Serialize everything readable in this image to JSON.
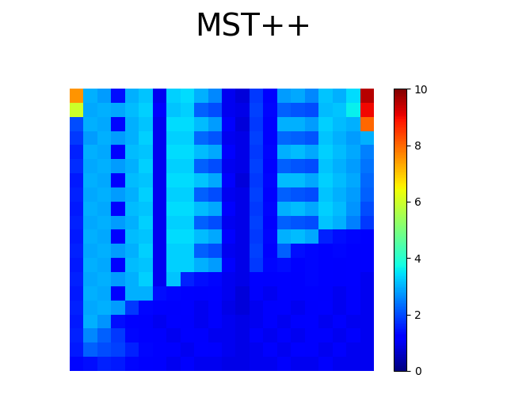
{
  "chart_data": {
    "type": "heatmap",
    "title": "MST++",
    "color": "jet",
    "tick_labels": false,
    "colorbar_range": [
      0,
      10
    ],
    "colorbar_ticks": [
      0,
      2,
      4,
      6,
      8,
      10
    ],
    "cells": [
      [
        7.5,
        3.0,
        2.8,
        1.4,
        3.0,
        3.2,
        1.0,
        3.3,
        3.4,
        3.0,
        2.6,
        1.0,
        0.8,
        1.8,
        1.2,
        2.8,
        2.9,
        2.6,
        3.2,
        3.0,
        3.4,
        9.5
      ],
      [
        6.0,
        2.9,
        3.0,
        2.9,
        3.1,
        3.3,
        1.1,
        3.2,
        3.3,
        2.2,
        2.0,
        1.0,
        0.9,
        1.9,
        1.3,
        2.2,
        2.1,
        2.0,
        3.1,
        3.2,
        3.6,
        9.0
      ],
      [
        2.0,
        3.0,
        2.9,
        1.3,
        3.0,
        3.2,
        1.0,
        3.4,
        3.4,
        3.1,
        2.8,
        1.1,
        0.8,
        1.8,
        1.2,
        3.0,
        3.0,
        2.8,
        3.3,
        3.1,
        3.0,
        8.0
      ],
      [
        1.8,
        2.8,
        3.0,
        2.8,
        3.0,
        3.3,
        1.0,
        3.3,
        3.3,
        2.3,
        2.1,
        1.0,
        0.9,
        1.9,
        1.2,
        2.3,
        2.2,
        2.1,
        3.2,
        3.0,
        2.8,
        3.0
      ],
      [
        1.6,
        3.0,
        2.9,
        1.2,
        3.1,
        3.2,
        1.0,
        3.4,
        3.4,
        3.1,
        2.9,
        1.1,
        0.9,
        1.8,
        1.3,
        3.0,
        3.1,
        2.9,
        3.3,
        3.1,
        2.9,
        2.5
      ],
      [
        1.7,
        2.9,
        3.0,
        2.8,
        3.0,
        3.3,
        1.0,
        3.3,
        3.3,
        2.2,
        2.0,
        1.0,
        0.9,
        1.9,
        1.2,
        2.2,
        2.1,
        2.0,
        3.2,
        3.0,
        2.8,
        2.4
      ],
      [
        1.5,
        3.0,
        2.9,
        1.2,
        3.1,
        3.2,
        1.0,
        3.4,
        3.4,
        3.2,
        2.9,
        1.1,
        0.8,
        1.8,
        1.3,
        3.1,
        3.1,
        2.9,
        3.3,
        3.1,
        2.9,
        2.3
      ],
      [
        1.6,
        2.9,
        3.0,
        2.8,
        3.0,
        3.3,
        1.0,
        3.3,
        3.3,
        2.2,
        2.0,
        1.0,
        0.9,
        1.9,
        1.2,
        2.2,
        2.1,
        2.0,
        3.2,
        3.0,
        2.8,
        2.2
      ],
      [
        1.5,
        3.0,
        2.9,
        1.2,
        3.1,
        3.2,
        1.0,
        3.4,
        3.4,
        3.1,
        2.9,
        1.1,
        0.9,
        1.8,
        1.3,
        3.0,
        3.1,
        2.9,
        3.3,
        3.1,
        2.7,
        2.0
      ],
      [
        1.6,
        2.9,
        3.0,
        2.8,
        3.0,
        3.3,
        1.0,
        3.3,
        3.3,
        2.2,
        2.0,
        1.0,
        0.9,
        1.9,
        1.2,
        2.2,
        2.1,
        2.0,
        3.2,
        3.0,
        2.5,
        1.8
      ],
      [
        1.5,
        3.0,
        2.9,
        1.2,
        3.1,
        3.2,
        1.0,
        3.4,
        3.4,
        3.1,
        2.9,
        1.1,
        0.9,
        1.8,
        1.3,
        3.0,
        3.1,
        2.9,
        1.6,
        1.4,
        1.3,
        1.2
      ],
      [
        1.6,
        2.9,
        3.0,
        2.8,
        3.0,
        3.3,
        1.0,
        3.3,
        3.3,
        2.2,
        2.0,
        1.0,
        0.9,
        1.9,
        1.2,
        2.2,
        1.4,
        1.3,
        1.2,
        1.3,
        1.2,
        1.1
      ],
      [
        1.5,
        3.0,
        2.9,
        1.2,
        3.1,
        3.2,
        1.0,
        3.3,
        3.3,
        3.0,
        2.8,
        1.1,
        0.9,
        1.8,
        1.3,
        1.4,
        1.2,
        1.3,
        1.2,
        1.1,
        1.2,
        1.1
      ],
      [
        1.6,
        2.9,
        3.0,
        2.8,
        3.0,
        3.3,
        1.0,
        3.2,
        1.6,
        1.4,
        1.3,
        1.0,
        0.9,
        1.2,
        1.1,
        1.2,
        1.1,
        1.3,
        1.2,
        1.1,
        1.2,
        1.0
      ],
      [
        1.5,
        3.0,
        2.9,
        1.2,
        3.0,
        3.0,
        1.4,
        1.3,
        1.2,
        1.1,
        1.2,
        1.0,
        0.8,
        1.1,
        1.0,
        1.2,
        1.1,
        1.2,
        1.1,
        1.0,
        1.1,
        1.0
      ],
      [
        1.6,
        2.9,
        3.0,
        2.8,
        1.8,
        1.3,
        1.2,
        1.1,
        1.2,
        1.0,
        1.1,
        0.9,
        0.8,
        1.0,
        1.1,
        1.2,
        1.0,
        1.1,
        1.2,
        1.0,
        1.1,
        1.0
      ],
      [
        1.5,
        3.0,
        2.7,
        1.4,
        1.2,
        1.1,
        1.0,
        1.2,
        1.1,
        1.0,
        1.1,
        1.0,
        0.9,
        1.0,
        1.1,
        1.0,
        1.1,
        1.2,
        1.0,
        1.1,
        1.0,
        1.0
      ],
      [
        1.6,
        2.6,
        2.2,
        1.8,
        1.3,
        1.2,
        1.1,
        1.0,
        1.2,
        1.1,
        1.0,
        1.0,
        0.9,
        1.1,
        1.0,
        1.1,
        1.0,
        1.1,
        1.1,
        1.0,
        1.1,
        1.0
      ],
      [
        1.5,
        2.2,
        2.0,
        1.9,
        1.6,
        1.3,
        1.2,
        1.1,
        1.0,
        1.2,
        1.1,
        1.0,
        0.9,
        1.0,
        1.1,
        1.0,
        1.2,
        1.1,
        1.0,
        1.1,
        1.0,
        1.0
      ],
      [
        1.3,
        1.4,
        1.6,
        1.5,
        1.3,
        1.2,
        1.1,
        1.0,
        1.1,
        1.0,
        1.0,
        0.9,
        0.9,
        1.0,
        1.0,
        1.1,
        1.0,
        1.0,
        1.1,
        1.0,
        1.0,
        1.0
      ]
    ]
  }
}
